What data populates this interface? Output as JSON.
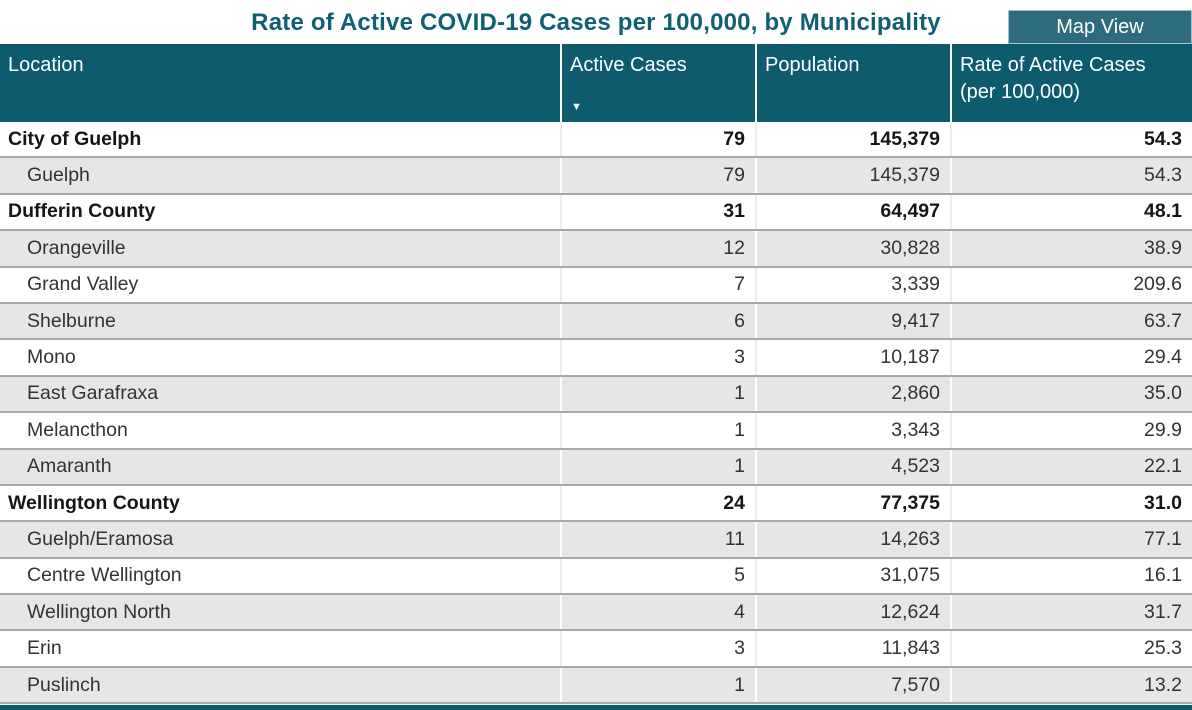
{
  "title": "Rate of Active COVID-19 Cases per 100,000, by Municipality",
  "map_view_button": "Map View",
  "colors": {
    "header_bg": "#0d5b6c",
    "button_bg": "#2e6b7c",
    "title_text": "#0e6073",
    "alt_row_bg": "#e6e6e6",
    "row_border": "#a8a8a8"
  },
  "table": {
    "columns": {
      "location": "Location",
      "active_cases": "Active Cases",
      "population": "Population",
      "rate": "Rate of Active Cases (per 100,000)"
    },
    "sort": {
      "column": "Active Cases",
      "direction": "descending",
      "icon": "▼"
    },
    "rows": [
      {
        "location": "City of Guelph",
        "active_cases": "79",
        "population": "145,379",
        "rate": "54.3",
        "is_group": true
      },
      {
        "location": "Guelph",
        "active_cases": "79",
        "population": "145,379",
        "rate": "54.3",
        "is_group": false
      },
      {
        "location": "Dufferin County",
        "active_cases": "31",
        "population": "64,497",
        "rate": "48.1",
        "is_group": true
      },
      {
        "location": "Orangeville",
        "active_cases": "12",
        "population": "30,828",
        "rate": "38.9",
        "is_group": false
      },
      {
        "location": "Grand Valley",
        "active_cases": "7",
        "population": "3,339",
        "rate": "209.6",
        "is_group": false
      },
      {
        "location": "Shelburne",
        "active_cases": "6",
        "population": "9,417",
        "rate": "63.7",
        "is_group": false
      },
      {
        "location": "Mono",
        "active_cases": "3",
        "population": "10,187",
        "rate": "29.4",
        "is_group": false
      },
      {
        "location": "East Garafraxa",
        "active_cases": "1",
        "population": "2,860",
        "rate": "35.0",
        "is_group": false
      },
      {
        "location": "Melancthon",
        "active_cases": "1",
        "population": "3,343",
        "rate": "29.9",
        "is_group": false
      },
      {
        "location": "Amaranth",
        "active_cases": "1",
        "population": "4,523",
        "rate": "22.1",
        "is_group": false
      },
      {
        "location": "Wellington County",
        "active_cases": "24",
        "population": "77,375",
        "rate": "31.0",
        "is_group": true
      },
      {
        "location": "Guelph/Eramosa",
        "active_cases": "11",
        "population": "14,263",
        "rate": "77.1",
        "is_group": false
      },
      {
        "location": "Centre Wellington",
        "active_cases": "5",
        "population": "31,075",
        "rate": "16.1",
        "is_group": false
      },
      {
        "location": "Wellington North",
        "active_cases": "4",
        "population": "12,624",
        "rate": "31.7",
        "is_group": false
      },
      {
        "location": "Erin",
        "active_cases": "3",
        "population": "11,843",
        "rate": "25.3",
        "is_group": false
      },
      {
        "location": "Puslinch",
        "active_cases": "1",
        "population": "7,570",
        "rate": "13.2",
        "is_group": false
      }
    ]
  }
}
